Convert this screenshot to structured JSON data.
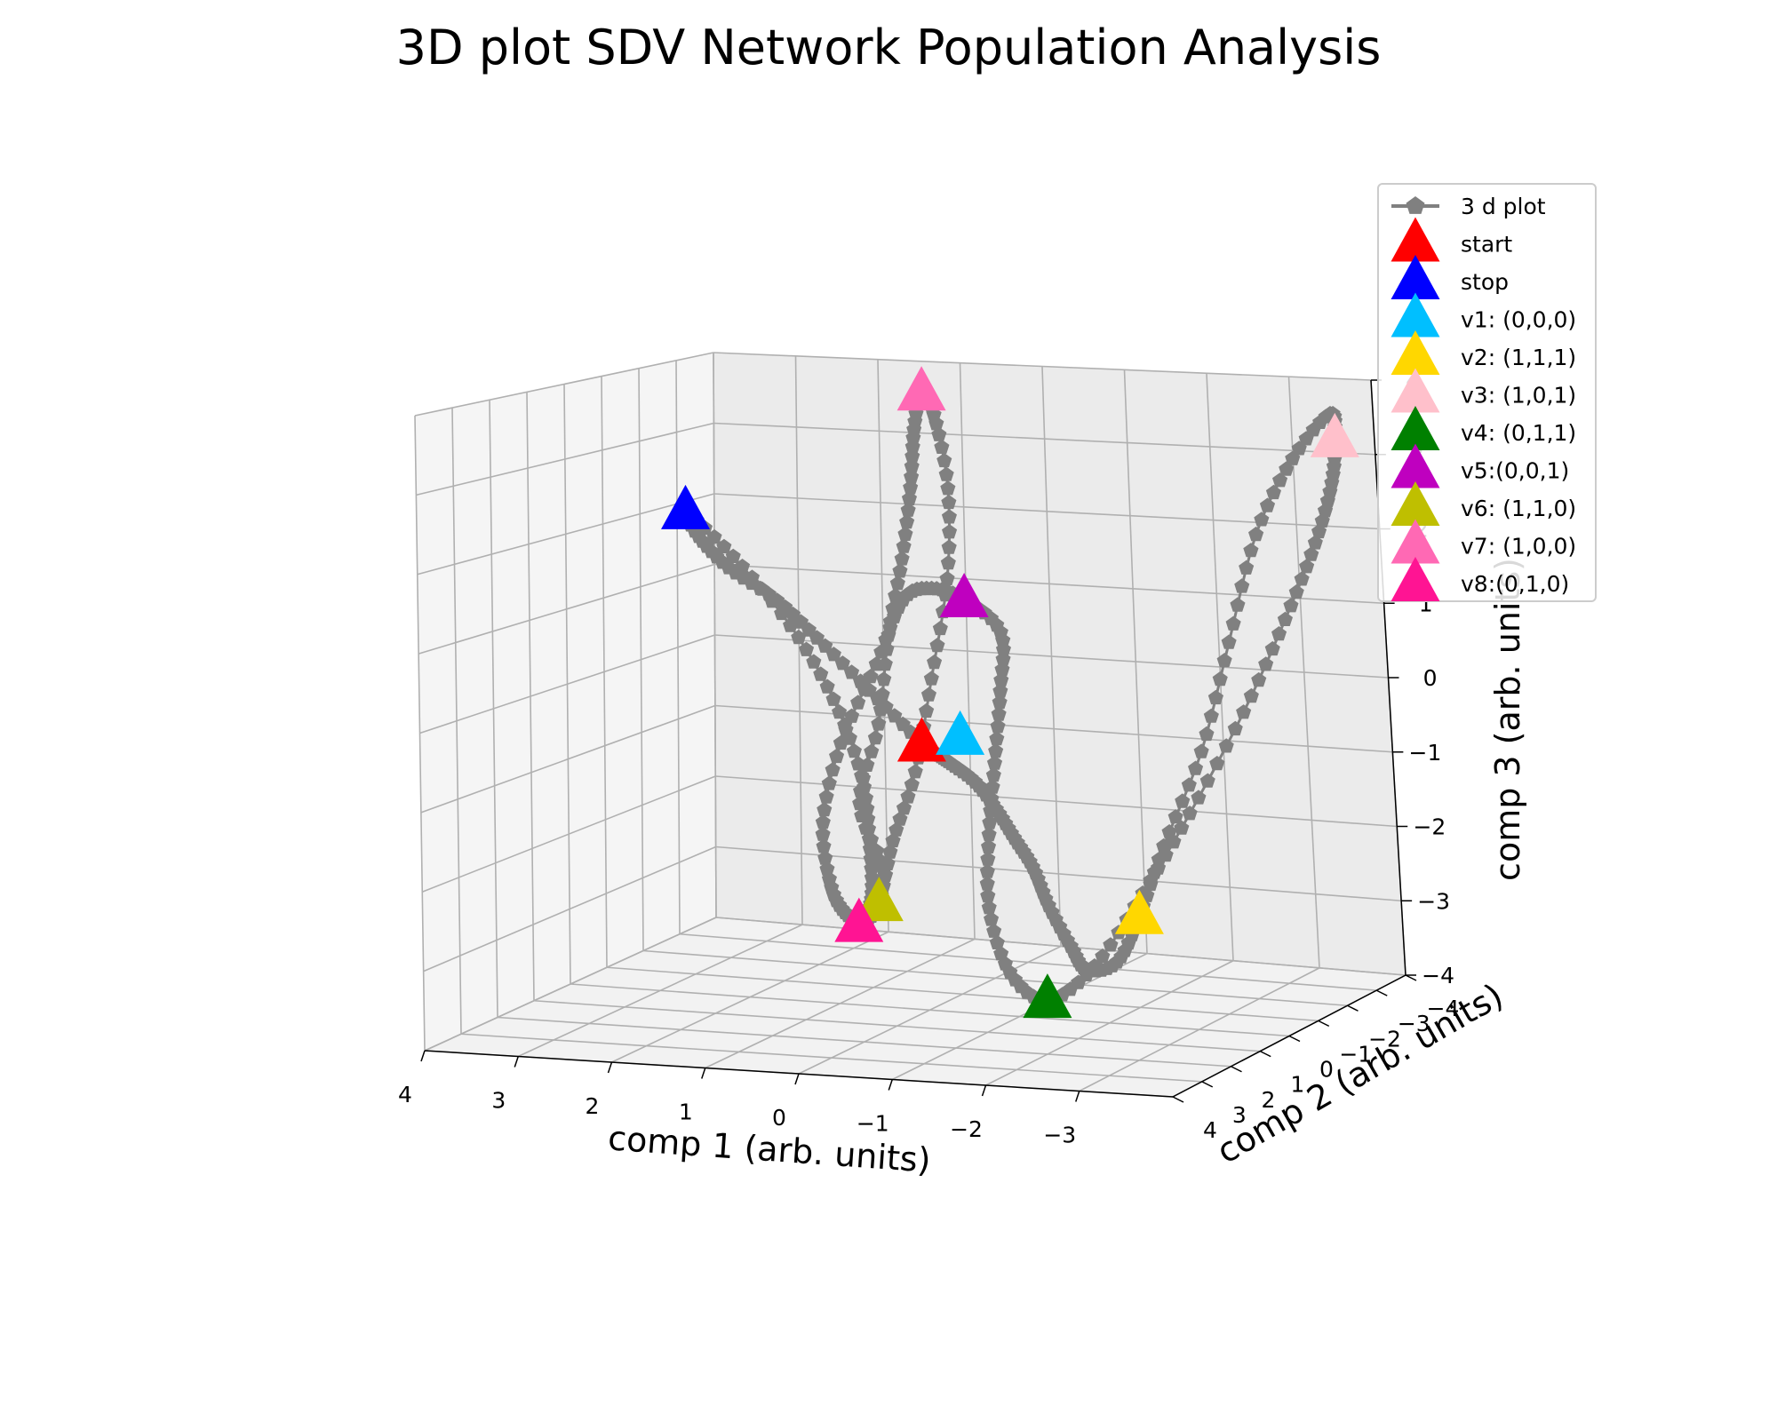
{
  "chart_data": {
    "type": "line3d",
    "title": "3D plot SDV Network Population Analysis",
    "xlabel": "comp 1 (arb. units)",
    "ylabel": "comp 2 (arb. units)",
    "zlabel": "comp 3 (arb. units)",
    "xticks": [
      "4",
      "3",
      "2",
      "1",
      "0",
      "−1",
      "−2",
      "−3"
    ],
    "yticks": [
      "4",
      "3",
      "2",
      "1",
      "0",
      "−1",
      "−2",
      "−3",
      "−4"
    ],
    "zticks": [
      "4",
      "3",
      "2",
      "1",
      "0",
      "−1",
      "−2",
      "−3",
      "−4"
    ],
    "xlim": [
      -4,
      4
    ],
    "ylim": [
      -4,
      4
    ],
    "zlim": [
      -4,
      4
    ],
    "grid": true,
    "legend_position": "top-right",
    "series": [
      {
        "name": "3 d plot",
        "color": "#808080",
        "marker": "pentagon",
        "x": [
          0.0,
          0.6,
          1.3,
          2.0,
          2.8,
          3.4,
          3.9,
          3.6,
          3.1,
          2.6,
          2.2,
          2.0,
          1.9,
          2.1,
          2.3,
          2.1,
          1.8,
          1.9,
          1.5,
          1.2,
          0.9,
          0.7,
          0.6,
          0.5,
          0.4,
          0.3,
          0.3,
          0.4,
          0.5,
          0.7,
          0.8,
          0.9,
          1.0,
          1.1,
          1.1,
          0.8,
          0.3,
          -0.1,
          -0.5,
          -0.9,
          -1.3,
          -1.2,
          -1.0,
          -0.8,
          -0.7,
          -0.8,
          -1.1,
          -1.5,
          -1.9,
          -2.3,
          -2.8,
          -3.2,
          -3.5,
          -3.7,
          -3.8,
          -3.9,
          -3.7,
          -3.5,
          -3.4,
          -3.3,
          -3.1,
          -3.0,
          -2.9,
          -2.6,
          -2.3,
          -1.9,
          -1.6,
          -1.3,
          -1.0,
          -0.7,
          -0.4,
          -0.2,
          0.0
        ],
        "y": [
          0.0,
          0.3,
          0.6,
          1.0,
          1.6,
          2.2,
          3.0,
          3.6,
          4.0,
          4.0,
          3.8,
          3.5,
          3.3,
          3.6,
          3.9,
          3.8,
          3.4,
          3.0,
          2.6,
          2.2,
          1.9,
          1.7,
          1.6,
          1.6,
          1.7,
          1.8,
          1.7,
          1.4,
          1.1,
          0.9,
          0.7,
          0.5,
          0.3,
          0.1,
          -0.1,
          -0.3,
          -0.5,
          -0.7,
          -0.9,
          -1.0,
          -1.0,
          -0.8,
          -0.5,
          -0.2,
          0.0,
          0.3,
          0.6,
          1.0,
          1.5,
          2.0,
          2.5,
          2.9,
          3.2,
          3.3,
          3.2,
          2.8,
          2.0,
          1.2,
          0.4,
          -0.4,
          -1.2,
          -1.8,
          -2.3,
          -2.4,
          -2.0,
          -1.5,
          -1.1,
          -0.8,
          -0.5,
          -0.3,
          -0.2,
          -0.1,
          0.0
        ],
        "z": [
          -0.5,
          0.0,
          0.6,
          1.1,
          1.4,
          1.7,
          1.9,
          1.2,
          0.2,
          -0.8,
          -1.8,
          -2.6,
          -3.3,
          -3.7,
          -3.9,
          -3.6,
          -3.0,
          -2.0,
          -0.8,
          0.5,
          1.6,
          2.6,
          3.4,
          3.9,
          3.6,
          2.6,
          1.4,
          0.1,
          -1.1,
          -2.0,
          -2.8,
          -3.0,
          -2.9,
          -2.5,
          -1.6,
          -0.5,
          0.6,
          1.5,
          1.7,
          1.6,
          1.2,
          0.4,
          -0.6,
          -1.6,
          -2.6,
          -3.5,
          -3.9,
          -3.5,
          -2.6,
          -1.6,
          -0.3,
          0.9,
          1.9,
          2.7,
          3.3,
          3.7,
          3.2,
          2.3,
          1.0,
          -0.3,
          -1.4,
          -2.2,
          -2.7,
          -2.8,
          -2.6,
          -2.2,
          -1.8,
          -1.5,
          -1.2,
          -0.9,
          -0.7,
          -0.6,
          -0.5
        ]
      }
    ],
    "markers": [
      {
        "label": "start",
        "color": "#ff0000",
        "x": 0.0,
        "y": 0.0,
        "z": -0.5
      },
      {
        "label": "stop",
        "color": "#0000ff",
        "x": 3.9,
        "y": 3.0,
        "z": 1.9
      },
      {
        "label": "v1: (0,0,0)",
        "color": "#00bfff",
        "x": -0.4,
        "y": 0.1,
        "z": -0.4
      },
      {
        "label": "v2: (1,1,1)",
        "color": "#ffd700",
        "x": -3.0,
        "y": -1.8,
        "z": -2.2
      },
      {
        "label": "v3: (1,0,1)",
        "color": "#ffc0cb",
        "x": -3.8,
        "y": 3.2,
        "z": 3.3
      },
      {
        "label": "v4: (0,1,1)",
        "color": "#008000",
        "x": -1.1,
        "y": 0.6,
        "z": -3.9
      },
      {
        "label": "v5:(0,0,1)",
        "color": "#bf00bf",
        "x": -0.9,
        "y": -1.0,
        "z": 1.6
      },
      {
        "label": "v6: (1,1,0)",
        "color": "#bfbf00",
        "x": 0.8,
        "y": 0.7,
        "z": -2.8
      },
      {
        "label": "v7: (1,0,0)",
        "color": "#ff69b4",
        "x": 0.5,
        "y": 1.6,
        "z": 3.9
      },
      {
        "label": "v8:(0,1,0)",
        "color": "#ff1493",
        "x": 2.3,
        "y": 3.9,
        "z": -3.9
      }
    ]
  },
  "legend": {
    "line_entry": "3 d plot",
    "entries": [
      "start",
      "stop",
      "v1: (0,0,0)",
      "v2: (1,1,1)",
      "v3: (1,0,1)",
      "v4: (0,1,1)",
      "v5:(0,0,1)",
      "v6: (1,1,0)",
      "v7: (1,0,0)",
      "v8:(0,1,0)"
    ]
  }
}
